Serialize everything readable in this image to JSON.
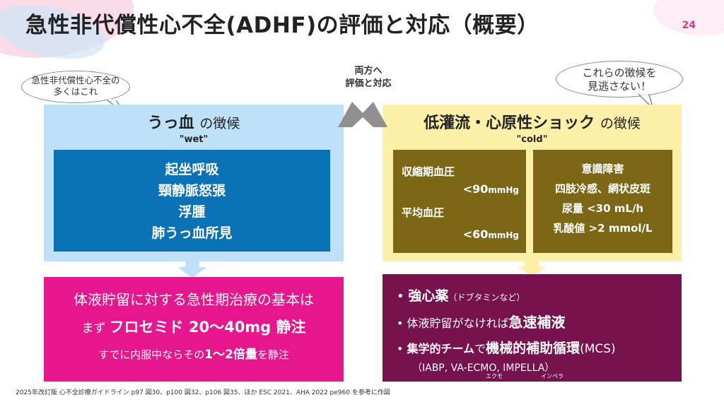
{
  "title": "急性非代償性心不全(ADHF)の評価と対応（概要）",
  "page_number": "24",
  "bubble_left": [
    "急性非代償性心不全の",
    "多くはこれ"
  ],
  "bubble_right": [
    "これらの徴候を",
    "見逃さない！"
  ],
  "center_label": [
    "両方へ",
    "評価と対応"
  ],
  "wet": {
    "title_main": "うっ血",
    "title_suffix": "の徴候",
    "subtitle": "\"wet\"",
    "signs": [
      "起坐呼吸",
      "頸静脈怒張",
      "浮腫",
      "肺うっ血所見"
    ]
  },
  "cold": {
    "title_main": "低灌流・心原性ショック",
    "title_suffix": "の徴候",
    "subtitle": "\"cold\"",
    "bp": {
      "sbp_label": "収縮期血圧",
      "sbp_value": "<90",
      "unit1": "mmHg",
      "map_label": "平均血圧",
      "map_value": "<60",
      "unit2": "mmHg"
    },
    "signs": [
      "意識障害",
      "四肢冷感、網状皮斑",
      "尿量 <30 mL/h",
      "乳酸値 >2 mmol/L"
    ]
  },
  "treat_wet": {
    "line1": "体液貯留に対する急性期治療の基本は",
    "line2_pre": "まず",
    "line2_main": "フロセミド 20〜40mg 静注",
    "line3_pre": "すでに内服中ならその",
    "line3_bold": "1〜2倍量",
    "line3_post": "を静注"
  },
  "treat_cold": {
    "item1_bold": "強心薬",
    "item1_note": "（ドブタミンなど）",
    "item2_pre": "体液貯留がなければ",
    "item2_bold": "急速補液",
    "item3_pre": "集学的チーム",
    "item3_mid": "で",
    "item3_bold": "機械的補助循環",
    "item3_post": "(MCS)",
    "item3_detail": "（IABP, VA-ECMO, IMPELLA）",
    "ruby_ecmo": "エクモ",
    "ruby_impella": "インペラ"
  },
  "footnote": "2025年改訂版 心不全診療ガイドライン p97 図30、p100 図32、p106 図35、ほか ESC 2021、AHA 2022 pe960 を参考に作図",
  "colors": {
    "wet_panel": "#bfe1f8",
    "wet_box": "#0b72b5",
    "cold_panel": "#fdf0a8",
    "cold_box": "#7b6715",
    "treat_wet": "#e6168c",
    "treat_cold": "#76124e",
    "accent": "#e0348c"
  }
}
